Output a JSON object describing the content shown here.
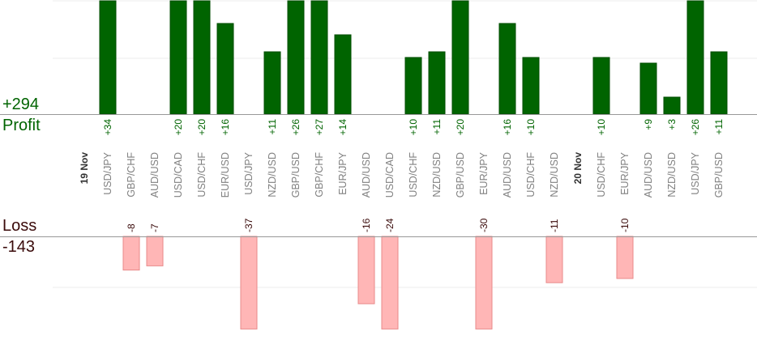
{
  "profit": {
    "label": "Profit",
    "total": "+294"
  },
  "loss": {
    "label": "Loss",
    "total": "-143"
  },
  "chart_data": {
    "type": "bar",
    "categories": [
      "19 Nov",
      "USD/JPY",
      "GBP/CHF",
      "AUD/USD",
      "USD/CAD",
      "USD/CHF",
      "EUR/USD",
      "USD/JPY",
      "NZD/USD",
      "GBP/USD",
      "GBP/CHF",
      "EUR/JPY",
      "AUD/USD",
      "USD/CAD",
      "USD/CHF",
      "NZD/USD",
      "GBP/USD",
      "EUR/JPY",
      "AUD/USD",
      "USD/CHF",
      "NZD/USD",
      "20 Nov",
      "USD/CHF",
      "EUR/JPY",
      "AUD/USD",
      "NZD/USD",
      "USD/JPY",
      "GBP/USD"
    ],
    "date_markers": [
      "19 Nov",
      "20 Nov"
    ],
    "values": [
      null,
      34,
      -8,
      -7,
      20,
      20,
      16,
      -37,
      11,
      26,
      27,
      14,
      -16,
      -24,
      10,
      11,
      20,
      -30,
      16,
      10,
      -11,
      null,
      10,
      -10,
      9,
      3,
      26,
      11
    ],
    "value_labels": [
      "",
      "+34",
      "-8",
      "-7",
      "+20",
      "+20",
      "+16",
      "-37",
      "+11",
      "+26",
      "+27",
      "+14",
      "-16",
      "-24",
      "+10",
      "+11",
      "+20",
      "-30",
      "+16",
      "+10",
      "-11",
      "",
      "+10",
      "-10",
      "+9",
      "+3",
      "+26",
      "+11"
    ],
    "profit_visible_max": 20,
    "loss_visible_max": 22,
    "grid": true,
    "colors": {
      "profit_bar": "#006400",
      "profit_bar_dark": "#004d00",
      "profit_text": "#006400",
      "loss_bar": "#ffb6b6",
      "loss_bar_edge": "#e88a8a",
      "loss_text": "#3a0a0a",
      "category_text": "#808080",
      "date_text": "#333333",
      "grid": "#eeeeee",
      "axis": "#999999"
    }
  }
}
